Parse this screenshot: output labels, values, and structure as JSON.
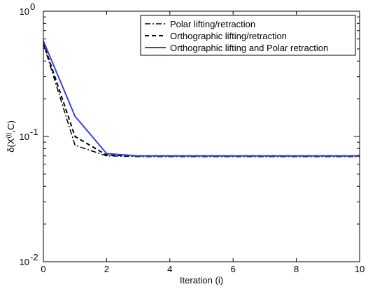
{
  "chart_data": {
    "type": "line",
    "title": "",
    "xlabel": "Iteration (i)",
    "ylabel": "δ(X(i),C)",
    "ylabel_parts": {
      "pre": "δ(X",
      "sup": "(i)",
      "post": ",C)"
    },
    "xlim": [
      0,
      10
    ],
    "ylim": [
      0.01,
      1
    ],
    "yscale": "log",
    "grid": false,
    "legend_position": "top-right",
    "xticks": [
      0,
      2,
      4,
      6,
      8,
      10
    ],
    "xtick_labels": [
      "0",
      "2",
      "4",
      "6",
      "8",
      "10"
    ],
    "yticks": [
      0.01,
      0.1,
      1
    ],
    "ytick_labels": [
      {
        "base": "10",
        "exp": "-2"
      },
      {
        "base": "10",
        "exp": "-1"
      },
      {
        "base": "10",
        "exp": "0"
      }
    ],
    "x": [
      0,
      1,
      2,
      3,
      4,
      5,
      6,
      7,
      8,
      9,
      10
    ],
    "series": [
      {
        "name": "Polar lifting/retraction",
        "color": "#000000",
        "dash": "dashdot",
        "values": [
          0.55,
          0.085,
          0.07,
          0.069,
          0.069,
          0.069,
          0.069,
          0.069,
          0.069,
          0.069,
          0.069
        ]
      },
      {
        "name": "Orthographic lifting/retraction",
        "color": "#000000",
        "dash": "dashed",
        "values": [
          0.56,
          0.1,
          0.071,
          0.07,
          0.07,
          0.07,
          0.07,
          0.07,
          0.07,
          0.07,
          0.07
        ]
      },
      {
        "name": "Orthographic lifting and Polar retraction",
        "color": "#3344dd",
        "dash": "solid",
        "values": [
          0.58,
          0.145,
          0.073,
          0.07,
          0.07,
          0.07,
          0.07,
          0.07,
          0.07,
          0.07,
          0.07
        ]
      }
    ]
  }
}
